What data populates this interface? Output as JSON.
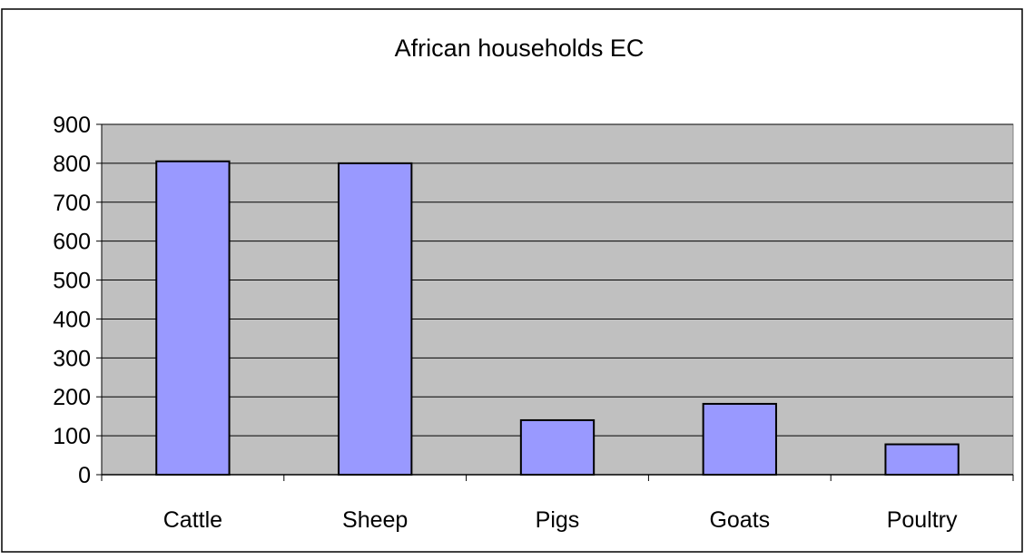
{
  "chart_data": {
    "type": "bar",
    "title": "African households EC",
    "categories": [
      "Cattle",
      "Sheep",
      "Pigs",
      "Goats",
      "Poultry"
    ],
    "values": [
      805,
      800,
      140,
      182,
      78
    ],
    "xlabel": "",
    "ylabel": "",
    "ylim": [
      0,
      900
    ],
    "yticks": [
      0,
      100,
      200,
      300,
      400,
      500,
      600,
      700,
      800,
      900
    ],
    "grid": true,
    "legend": "none",
    "colors": {
      "bar_fill": "#9999ff",
      "bar_stroke": "#000000",
      "plot_background": "#c0c0c0",
      "gridline": "#000000",
      "page_background": "#ffffff"
    }
  }
}
